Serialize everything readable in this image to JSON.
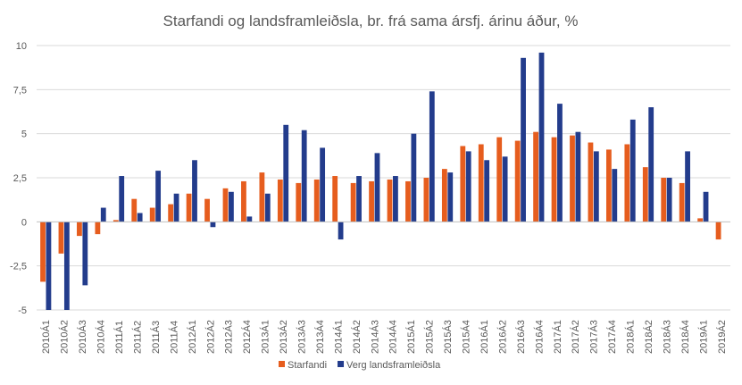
{
  "chart_data": {
    "type": "bar",
    "title": "Starfandi og landsframleiðsla, br. frá sama ársfj. árinu áður, %",
    "xlabel": "",
    "ylabel": "",
    "ylim": [
      -5,
      10
    ],
    "yticks": [
      "10",
      "7,5",
      "5",
      "2,5",
      "0",
      "-2,5",
      "-5"
    ],
    "ytick_values": [
      10,
      7.5,
      5,
      2.5,
      0,
      -2.5,
      -5
    ],
    "grid": true,
    "legend_position": "bottom",
    "categories": [
      "2010Á1",
      "2010Á2",
      "2010Á3",
      "2010Á4",
      "2011Á1",
      "2011Á2",
      "2011Á3",
      "2011Á4",
      "2012Á1",
      "2012Á2",
      "2012Á3",
      "2012Á4",
      "2013Á1",
      "2013Á2",
      "2013Á3",
      "2013Á4",
      "2014Á1",
      "2014Á2",
      "2014Á3",
      "2014Á4",
      "2015Á1",
      "2015Á2",
      "2015Á3",
      "2015Á4",
      "2016Á1",
      "2016Á2",
      "2016Á3",
      "2016Á4",
      "2017Á1",
      "2017Á2",
      "2017Á3",
      "2017Á4",
      "2018Á1",
      "2018Á2",
      "2018Á3",
      "2018Á4",
      "2019Á1",
      "2019Á2"
    ],
    "series": [
      {
        "name": "Starfandi",
        "color": "#e65d1e",
        "values": [
          -3.4,
          -1.8,
          -0.8,
          -0.7,
          0.1,
          1.3,
          0.8,
          1.0,
          1.6,
          1.3,
          1.9,
          2.3,
          2.8,
          2.4,
          2.2,
          2.4,
          2.6,
          2.2,
          2.3,
          2.4,
          2.3,
          2.5,
          3.0,
          4.3,
          4.4,
          4.8,
          4.6,
          5.1,
          4.8,
          4.9,
          4.5,
          4.1,
          4.4,
          3.1,
          2.5,
          2.2,
          0.2,
          -1.0
        ]
      },
      {
        "name": "Verg landsframleiðsla",
        "color": "#233c8c",
        "values": [
          -5.0,
          -5.0,
          -3.6,
          0.8,
          2.6,
          0.5,
          2.9,
          1.6,
          3.5,
          -0.3,
          1.7,
          0.3,
          1.6,
          5.5,
          5.2,
          4.2,
          -1.0,
          2.6,
          3.9,
          2.6,
          5.0,
          7.4,
          2.8,
          4.0,
          3.5,
          3.7,
          9.3,
          9.6,
          6.7,
          5.1,
          4.0,
          3.0,
          5.8,
          6.5,
          2.5,
          4.0,
          1.7,
          null
        ]
      }
    ]
  }
}
